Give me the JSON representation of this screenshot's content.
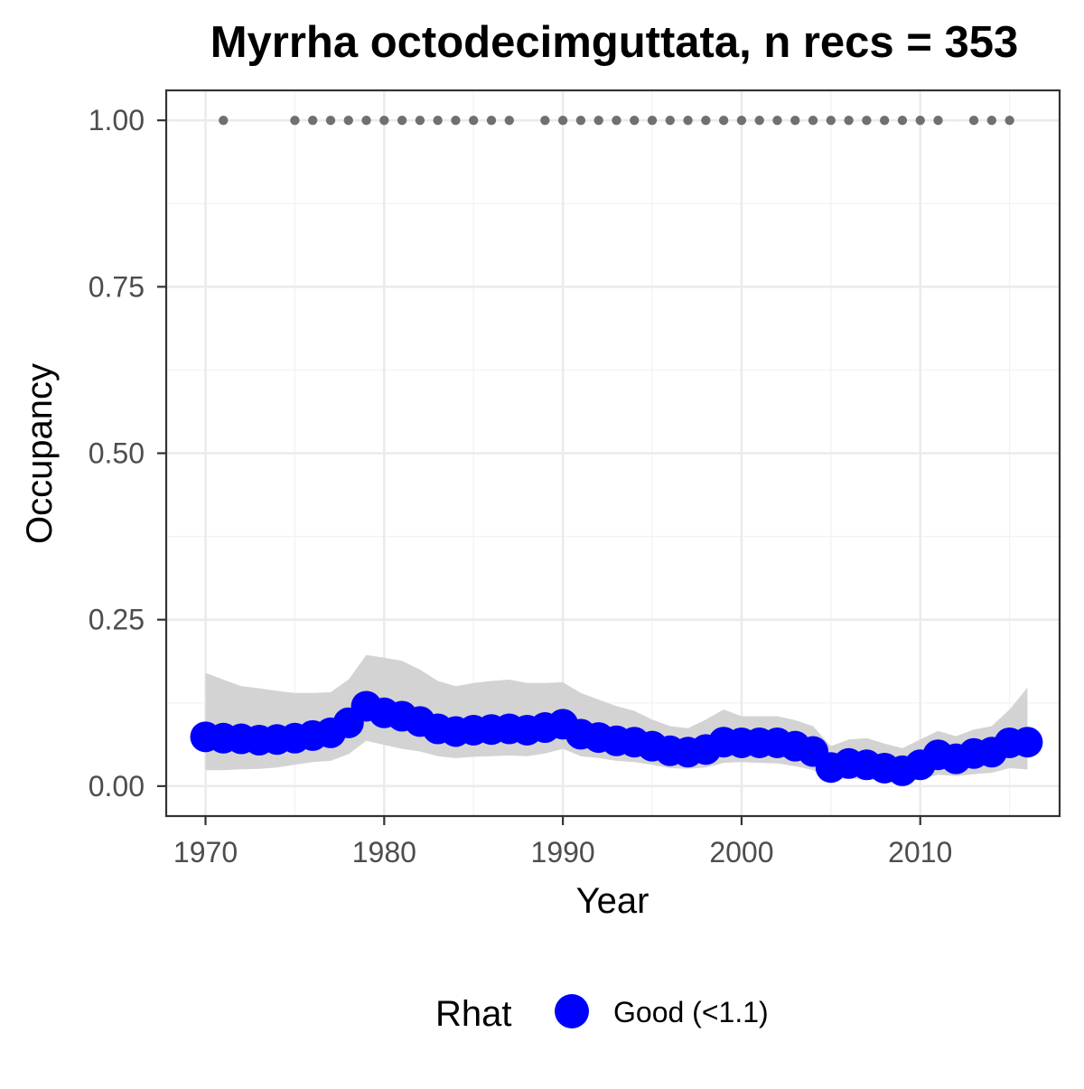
{
  "chart_data": {
    "type": "line",
    "title": "Myrrha octodecimguttata, n recs = 353",
    "xlabel": "Year",
    "ylabel": "Occupancy",
    "xlim": [
      1967.8,
      2017.8
    ],
    "ylim": [
      -0.045,
      1.045
    ],
    "x_ticks": [
      1970,
      1980,
      1990,
      2000,
      2010
    ],
    "x_tick_labels": [
      "1970",
      "1980",
      "1990",
      "2000",
      "2010"
    ],
    "y_ticks": [
      0,
      0.25,
      0.5,
      0.75,
      1.0
    ],
    "y_tick_labels": [
      "0.00",
      "0.25",
      "0.50",
      "0.75",
      "1.00"
    ],
    "grid": true,
    "legend": {
      "position": "bottom",
      "title": "Rhat",
      "entries": [
        {
          "label": "Good (<1.1)",
          "color": "#0000ff"
        }
      ]
    },
    "colors": {
      "series": "#0000ff",
      "band": "#d3d3d3",
      "records": "#707070"
    },
    "x": [
      1970,
      1971,
      1972,
      1973,
      1974,
      1975,
      1976,
      1977,
      1978,
      1979,
      1980,
      1981,
      1982,
      1983,
      1984,
      1985,
      1986,
      1987,
      1988,
      1989,
      1990,
      1991,
      1992,
      1993,
      1994,
      1995,
      1996,
      1997,
      1998,
      1999,
      2000,
      2001,
      2002,
      2003,
      2004,
      2005,
      2006,
      2007,
      2008,
      2009,
      2010,
      2011,
      2012,
      2013,
      2014,
      2015,
      2016
    ],
    "series": [
      {
        "name": "Good (<1.1)",
        "values": [
          0.074,
          0.072,
          0.071,
          0.069,
          0.07,
          0.072,
          0.076,
          0.08,
          0.095,
          0.12,
          0.11,
          0.105,
          0.097,
          0.086,
          0.082,
          0.084,
          0.085,
          0.086,
          0.084,
          0.088,
          0.093,
          0.078,
          0.073,
          0.068,
          0.066,
          0.06,
          0.053,
          0.051,
          0.055,
          0.066,
          0.065,
          0.065,
          0.065,
          0.06,
          0.052,
          0.028,
          0.034,
          0.032,
          0.027,
          0.023,
          0.032,
          0.047,
          0.041,
          0.049,
          0.051,
          0.065,
          0.066
        ]
      }
    ],
    "ci_band": {
      "lower": [
        0.024,
        0.024,
        0.025,
        0.026,
        0.028,
        0.032,
        0.036,
        0.038,
        0.048,
        0.068,
        0.062,
        0.056,
        0.052,
        0.045,
        0.042,
        0.044,
        0.045,
        0.046,
        0.045,
        0.049,
        0.056,
        0.045,
        0.042,
        0.038,
        0.036,
        0.032,
        0.027,
        0.026,
        0.028,
        0.035,
        0.036,
        0.035,
        0.034,
        0.03,
        0.024,
        0.009,
        0.011,
        0.01,
        0.008,
        0.006,
        0.01,
        0.017,
        0.015,
        0.018,
        0.02,
        0.027,
        0.025
      ],
      "upper": [
        0.17,
        0.16,
        0.15,
        0.147,
        0.143,
        0.14,
        0.14,
        0.141,
        0.16,
        0.197,
        0.193,
        0.188,
        0.175,
        0.158,
        0.15,
        0.155,
        0.158,
        0.16,
        0.155,
        0.155,
        0.156,
        0.14,
        0.13,
        0.12,
        0.113,
        0.1,
        0.09,
        0.087,
        0.1,
        0.115,
        0.105,
        0.105,
        0.105,
        0.099,
        0.09,
        0.06,
        0.07,
        0.072,
        0.064,
        0.057,
        0.07,
        0.083,
        0.075,
        0.085,
        0.09,
        0.115,
        0.148
      ]
    },
    "records": {
      "y": 1.0,
      "years": [
        1971,
        1975,
        1976,
        1977,
        1978,
        1979,
        1980,
        1981,
        1982,
        1983,
        1984,
        1985,
        1986,
        1987,
        1989,
        1990,
        1991,
        1992,
        1993,
        1994,
        1995,
        1996,
        1997,
        1998,
        1999,
        2000,
        2001,
        2002,
        2003,
        2004,
        2005,
        2006,
        2007,
        2008,
        2009,
        2010,
        2011,
        2013,
        2014,
        2015
      ]
    }
  }
}
